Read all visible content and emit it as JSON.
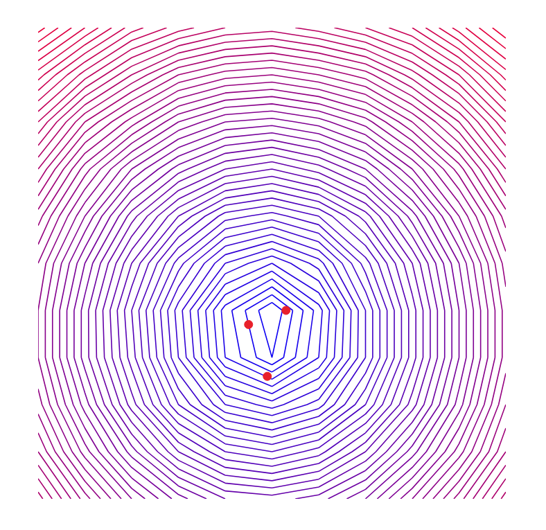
{
  "chart_data": {
    "type": "contour",
    "tick_labels": false,
    "grid": false,
    "xlim": [
      0,
      1
    ],
    "ylim": [
      0,
      1
    ],
    "x": [
      0,
      0.1,
      0.2,
      0.3,
      0.4,
      0.5,
      0.6,
      0.7,
      0.8,
      0.9,
      1
    ],
    "y": [
      0,
      0.1,
      0.2,
      0.3,
      0.4,
      0.5,
      0.6,
      0.7,
      0.8,
      0.9,
      1
    ],
    "z": [
      [
        0.79,
        0.69,
        0.6,
        0.53,
        0.48,
        0.47,
        0.49,
        0.54,
        0.62,
        0.71,
        0.81
      ],
      [
        0.72,
        0.61,
        0.51,
        0.42,
        0.36,
        0.34,
        0.37,
        0.44,
        0.53,
        0.63,
        0.74
      ],
      [
        0.67,
        0.55,
        0.43,
        0.32,
        0.24,
        0.21,
        0.25,
        0.34,
        0.45,
        0.57,
        0.7
      ],
      [
        0.64,
        0.51,
        0.39,
        0.26,
        0.14,
        0.08,
        0.16,
        0.28,
        0.41,
        0.54,
        0.67
      ],
      [
        0.64,
        0.51,
        0.38,
        0.25,
        0.13,
        0.06,
        0.15,
        0.28,
        0.41,
        0.54,
        0.67
      ],
      [
        0.66,
        0.54,
        0.42,
        0.31,
        0.22,
        0.18,
        0.23,
        0.33,
        0.44,
        0.56,
        0.69
      ],
      [
        0.71,
        0.6,
        0.49,
        0.4,
        0.33,
        0.31,
        0.34,
        0.41,
        0.51,
        0.62,
        0.73
      ],
      [
        0.78,
        0.67,
        0.58,
        0.51,
        0.46,
        0.44,
        0.47,
        0.52,
        0.6,
        0.69,
        0.8
      ],
      [
        0.86,
        0.76,
        0.69,
        0.62,
        0.58,
        0.57,
        0.59,
        0.63,
        0.7,
        0.78,
        0.88
      ],
      [
        0.95,
        0.87,
        0.8,
        0.74,
        0.71,
        0.7,
        0.72,
        0.75,
        0.81,
        0.88,
        0.97
      ],
      [
        1.05,
        0.98,
        0.91,
        0.87,
        0.84,
        0.83,
        0.85,
        0.88,
        0.92,
        0.99,
        1.06
      ]
    ],
    "levels": [
      0.02,
      0.04,
      0.06,
      0.08,
      0.1,
      0.12,
      0.14,
      0.16,
      0.18,
      0.2,
      0.22,
      0.24,
      0.26,
      0.28,
      0.3,
      0.32,
      0.34,
      0.36,
      0.38,
      0.4,
      0.42,
      0.44,
      0.46,
      0.48,
      0.5,
      0.52,
      0.54,
      0.56,
      0.58,
      0.6,
      0.62,
      0.64,
      0.66,
      0.68,
      0.7,
      0.72,
      0.74,
      0.76,
      0.78,
      0.8,
      0.82,
      0.84,
      0.86,
      0.88,
      0.9,
      0.92,
      0.94,
      0.96,
      0.98,
      1.0,
      1.02,
      1.04
    ],
    "colormap": [
      "#0000ff",
      "#e8003a"
    ],
    "markers": {
      "x": [
        0.45,
        0.53,
        0.49
      ],
      "y": [
        0.37,
        0.4,
        0.26
      ],
      "color": "#e8202a",
      "marker": "circle"
    }
  }
}
